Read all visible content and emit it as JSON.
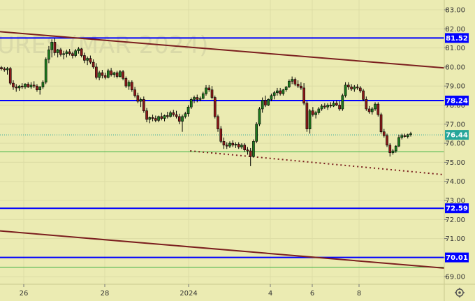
{
  "chart_data": {
    "type": "candlestick",
    "symbol_watermark": "URES (MAR 2024)",
    "y_axis": {
      "range": [
        68.5,
        83.5
      ],
      "ticks": [
        "83.00",
        "82.00",
        "81.00",
        "80.00",
        "79.00",
        "78.00",
        "77.00",
        "76.00",
        "75.00",
        "74.00",
        "73.00",
        "72.00",
        "71.00",
        "70.00",
        "69.00"
      ]
    },
    "x_axis": {
      "ticks": [
        "26",
        "28",
        "2024",
        "4",
        "6",
        "8"
      ]
    },
    "horizontal_levels": [
      {
        "label": "81.52",
        "value": 81.52,
        "color": "#0000ff"
      },
      {
        "label": "78.24",
        "value": 78.24,
        "color": "#0000ff"
      },
      {
        "label": "72.59",
        "value": 72.59,
        "color": "#0000ff"
      },
      {
        "label": "70.01",
        "value": 70.01,
        "color": "#0000ff"
      }
    ],
    "green_levels": [
      75.55,
      69.5
    ],
    "last_price": {
      "label": "76.44",
      "value": 76.44,
      "color": "#26a69a"
    },
    "trend_lines": [
      {
        "name": "upper-channel",
        "color": "#7b1f1f",
        "style": "solid",
        "from": [
          0.0,
          81.85
        ],
        "to": [
          1.0,
          79.95
        ]
      },
      {
        "name": "lower-channel",
        "color": "#7b1f1f",
        "style": "solid",
        "from": [
          0.0,
          71.4
        ],
        "to": [
          1.0,
          69.45
        ]
      },
      {
        "name": "support-dotted",
        "color": "#7b1f1f",
        "style": "dotted",
        "from": [
          0.428,
          75.6
        ],
        "to": [
          1.0,
          74.35
        ]
      }
    ],
    "candles": [
      [
        79.97,
        80.05,
        79.82,
        79.9
      ],
      [
        79.9,
        80.0,
        79.75,
        79.85
      ],
      [
        79.85,
        80.0,
        79.6,
        79.92
      ],
      [
        79.92,
        80.0,
        79.05,
        79.15
      ],
      [
        79.15,
        79.3,
        78.8,
        78.95
      ],
      [
        78.95,
        79.1,
        78.7,
        78.9
      ],
      [
        78.9,
        79.05,
        78.75,
        79.0
      ],
      [
        79.0,
        79.15,
        78.85,
        78.95
      ],
      [
        78.95,
        79.15,
        78.85,
        79.1
      ],
      [
        79.1,
        79.2,
        78.9,
        78.95
      ],
      [
        78.95,
        79.2,
        78.85,
        79.05
      ],
      [
        79.05,
        79.25,
        78.9,
        79.0
      ],
      [
        79.0,
        79.1,
        78.7,
        78.8
      ],
      [
        78.8,
        79.0,
        78.55,
        78.95
      ],
      [
        78.95,
        79.3,
        78.85,
        79.2
      ],
      [
        79.2,
        80.5,
        79.1,
        80.4
      ],
      [
        80.4,
        81.1,
        80.2,
        80.9
      ],
      [
        80.9,
        81.45,
        80.5,
        81.3
      ],
      [
        81.3,
        81.5,
        80.6,
        80.75
      ],
      [
        80.75,
        80.95,
        80.5,
        80.9
      ],
      [
        80.9,
        81.0,
        80.55,
        80.65
      ],
      [
        80.65,
        80.85,
        80.4,
        80.7
      ],
      [
        80.7,
        80.9,
        80.5,
        80.8
      ],
      [
        80.8,
        80.95,
        80.6,
        80.7
      ],
      [
        80.7,
        80.8,
        80.45,
        80.6
      ],
      [
        80.6,
        80.95,
        80.5,
        80.85
      ],
      [
        80.85,
        81.05,
        80.7,
        80.95
      ],
      [
        80.95,
        81.0,
        80.5,
        80.6
      ],
      [
        80.6,
        80.75,
        80.2,
        80.35
      ],
      [
        80.35,
        80.55,
        80.1,
        80.45
      ],
      [
        80.45,
        80.6,
        80.15,
        80.25
      ],
      [
        80.25,
        80.4,
        79.9,
        80.0
      ],
      [
        80.0,
        80.2,
        79.35,
        79.45
      ],
      [
        79.45,
        79.8,
        79.3,
        79.7
      ],
      [
        79.7,
        79.85,
        79.4,
        79.55
      ],
      [
        79.55,
        79.7,
        79.35,
        79.45
      ],
      [
        79.45,
        79.9,
        79.4,
        79.8
      ],
      [
        79.8,
        79.95,
        79.5,
        79.6
      ],
      [
        79.6,
        79.75,
        79.45,
        79.7
      ],
      [
        79.7,
        79.8,
        79.4,
        79.5
      ],
      [
        79.5,
        79.85,
        79.45,
        79.75
      ],
      [
        79.75,
        79.85,
        79.3,
        79.4
      ],
      [
        79.4,
        79.5,
        78.9,
        79.0
      ],
      [
        79.0,
        79.3,
        78.8,
        79.2
      ],
      [
        79.2,
        79.3,
        78.7,
        78.8
      ],
      [
        78.8,
        78.95,
        78.4,
        78.5
      ],
      [
        78.5,
        78.65,
        78.1,
        78.2
      ],
      [
        78.2,
        78.4,
        77.9,
        78.3
      ],
      [
        78.3,
        78.45,
        77.6,
        77.7
      ],
      [
        77.7,
        77.85,
        77.1,
        77.25
      ],
      [
        77.25,
        77.4,
        77.05,
        77.35
      ],
      [
        77.35,
        77.5,
        77.15,
        77.3
      ],
      [
        77.3,
        77.45,
        77.1,
        77.2
      ],
      [
        77.2,
        77.45,
        77.1,
        77.4
      ],
      [
        77.4,
        77.6,
        77.2,
        77.3
      ],
      [
        77.3,
        77.5,
        77.15,
        77.45
      ],
      [
        77.45,
        77.65,
        77.3,
        77.4
      ],
      [
        77.4,
        77.7,
        77.35,
        77.6
      ],
      [
        77.6,
        77.75,
        77.4,
        77.5
      ],
      [
        77.5,
        77.7,
        77.3,
        77.4
      ],
      [
        77.4,
        77.55,
        77.0,
        77.15
      ],
      [
        77.15,
        77.5,
        76.6,
        77.4
      ],
      [
        77.4,
        77.65,
        77.3,
        77.55
      ],
      [
        77.55,
        78.0,
        77.4,
        77.9
      ],
      [
        77.9,
        78.4,
        77.8,
        78.3
      ],
      [
        78.3,
        78.5,
        78.1,
        78.4
      ],
      [
        78.4,
        78.55,
        78.15,
        78.3
      ],
      [
        78.3,
        78.45,
        78.2,
        78.35
      ],
      [
        78.35,
        78.7,
        78.3,
        78.6
      ],
      [
        78.6,
        79.05,
        78.5,
        78.9
      ],
      [
        78.9,
        79.05,
        78.7,
        78.8
      ],
      [
        78.8,
        79.0,
        78.3,
        78.4
      ],
      [
        78.4,
        78.5,
        77.3,
        77.4
      ],
      [
        77.4,
        77.5,
        76.6,
        76.75
      ],
      [
        76.75,
        76.9,
        76.0,
        76.1
      ],
      [
        76.1,
        76.3,
        75.7,
        75.9
      ],
      [
        75.9,
        76.05,
        75.7,
        75.85
      ],
      [
        75.85,
        76.1,
        75.75,
        76.0
      ],
      [
        76.0,
        76.15,
        75.8,
        75.9
      ],
      [
        75.9,
        76.05,
        75.75,
        75.95
      ],
      [
        75.95,
        76.05,
        75.7,
        75.8
      ],
      [
        75.8,
        76.0,
        75.7,
        75.9
      ],
      [
        75.9,
        76.0,
        75.55,
        75.65
      ],
      [
        75.65,
        75.8,
        75.4,
        75.6
      ],
      [
        75.6,
        75.75,
        74.8,
        75.3
      ],
      [
        75.3,
        76.2,
        75.25,
        76.1
      ],
      [
        76.1,
        77.1,
        76.0,
        77.0
      ],
      [
        77.0,
        77.9,
        76.9,
        77.8
      ],
      [
        77.8,
        78.4,
        77.6,
        78.25
      ],
      [
        78.25,
        78.5,
        77.9,
        78.0
      ],
      [
        78.0,
        78.35,
        77.95,
        78.3
      ],
      [
        78.3,
        78.6,
        78.2,
        78.5
      ],
      [
        78.5,
        78.75,
        78.3,
        78.65
      ],
      [
        78.65,
        78.9,
        78.5,
        78.75
      ],
      [
        78.75,
        78.9,
        78.5,
        78.6
      ],
      [
        78.6,
        78.85,
        78.5,
        78.8
      ],
      [
        78.8,
        79.0,
        78.7,
        78.95
      ],
      [
        78.95,
        79.35,
        78.9,
        79.25
      ],
      [
        79.25,
        79.5,
        79.1,
        79.35
      ],
      [
        79.35,
        79.45,
        79.0,
        79.1
      ],
      [
        79.1,
        79.3,
        78.9,
        79.0
      ],
      [
        79.0,
        79.2,
        78.8,
        78.9
      ],
      [
        78.9,
        79.15,
        78.0,
        78.1
      ],
      [
        78.1,
        78.2,
        76.6,
        76.75
      ],
      [
        76.75,
        77.8,
        76.5,
        77.7
      ],
      [
        77.7,
        77.9,
        77.4,
        77.5
      ],
      [
        77.5,
        77.7,
        77.3,
        77.6
      ],
      [
        77.6,
        77.9,
        77.5,
        77.8
      ],
      [
        77.8,
        78.05,
        77.7,
        77.95
      ],
      [
        77.95,
        78.1,
        77.8,
        77.9
      ],
      [
        77.9,
        78.1,
        77.75,
        78.0
      ],
      [
        78.0,
        78.15,
        77.85,
        77.95
      ],
      [
        77.95,
        78.2,
        77.9,
        78.1
      ],
      [
        78.1,
        78.25,
        77.95,
        78.0
      ],
      [
        78.0,
        78.2,
        77.7,
        77.8
      ],
      [
        77.8,
        78.6,
        77.7,
        78.5
      ],
      [
        78.5,
        79.2,
        78.4,
        79.05
      ],
      [
        79.05,
        79.2,
        78.8,
        78.95
      ],
      [
        78.95,
        79.1,
        78.75,
        78.85
      ],
      [
        78.85,
        79.05,
        78.7,
        78.95
      ],
      [
        78.95,
        79.1,
        78.8,
        78.9
      ],
      [
        78.9,
        79.0,
        78.65,
        78.75
      ],
      [
        78.75,
        78.85,
        78.2,
        78.3
      ],
      [
        78.3,
        78.45,
        77.7,
        77.8
      ],
      [
        77.8,
        77.95,
        77.55,
        77.65
      ],
      [
        77.65,
        77.9,
        77.5,
        77.8
      ],
      [
        77.8,
        78.15,
        77.7,
        78.05
      ],
      [
        78.05,
        78.15,
        77.4,
        77.5
      ],
      [
        77.5,
        77.6,
        76.5,
        76.6
      ],
      [
        76.6,
        76.75,
        76.3,
        76.4
      ],
      [
        76.4,
        76.5,
        75.8,
        75.9
      ],
      [
        75.9,
        76.0,
        75.3,
        75.5
      ],
      [
        75.5,
        75.7,
        75.4,
        75.6
      ],
      [
        75.6,
        75.9,
        75.5,
        75.85
      ],
      [
        75.85,
        76.45,
        75.8,
        76.3
      ],
      [
        76.3,
        76.5,
        76.2,
        76.4
      ],
      [
        76.4,
        76.5,
        76.3,
        76.35
      ],
      [
        76.35,
        76.5,
        76.25,
        76.45
      ],
      [
        76.45,
        76.6,
        76.35,
        76.5
      ]
    ]
  }
}
